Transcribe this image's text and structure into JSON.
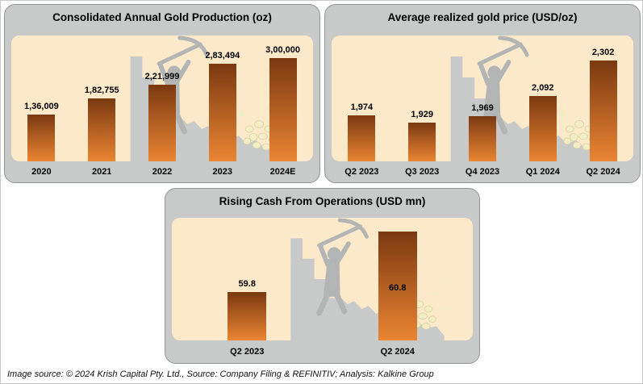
{
  "chart_data": [
    {
      "type": "bar",
      "title": "Consolidated Annual Gold Production (oz)",
      "categories": [
        "2020",
        "2021",
        "2022",
        "2023",
        "2024E"
      ],
      "values": [
        136009,
        182755,
        221999,
        283494,
        300000
      ],
      "value_labels": [
        "1,36,009",
        "1,82,755",
        "2,21,999",
        "2,83,494",
        "3,00,000"
      ],
      "ylim": [
        0,
        300000
      ],
      "xlabel": "",
      "ylabel": "",
      "grid": false,
      "legend": false
    },
    {
      "type": "bar",
      "title": "Average realized gold price (USD/oz)",
      "categories": [
        "Q2 2023",
        "Q3 2023",
        "Q4 2023",
        "Q1 2024",
        "Q2 2024"
      ],
      "values": [
        1974,
        1929,
        1969,
        2092,
        2302
      ],
      "value_labels": [
        "1,974",
        "1,929",
        "1,969",
        "2,092",
        "2,302"
      ],
      "ylim": [
        1700,
        2350
      ],
      "xlabel": "",
      "ylabel": "",
      "grid": false,
      "legend": false
    },
    {
      "type": "bar",
      "title": "Rising Cash From Operations (USD mn)",
      "categories": [
        "Q2 2023",
        "Q2 2024"
      ],
      "values": [
        59.8,
        60.8
      ],
      "value_labels": [
        "59.8",
        "60.8"
      ],
      "ylim": [
        59,
        61
      ],
      "xlabel": "",
      "ylabel": "",
      "grid": false,
      "legend": false
    }
  ],
  "footer": {
    "text": "Image source: © 2024 Krish Capital Pty. Ltd., Source: Company Filing & REFINITIV; Analysis: Kalkine Group"
  },
  "colors": {
    "bar_top": "#7b3911",
    "bar_bottom": "#ea8533",
    "panel_bg": "#c8cac9",
    "cave_bg": "#fce9ca",
    "nugget": "#f3edc5",
    "text": "#000000"
  },
  "icons": {
    "miner": "miner-with-pickaxe-silhouette",
    "nuggets": "gold-nugget-cluster",
    "sparkles": "sparkle-stars"
  }
}
